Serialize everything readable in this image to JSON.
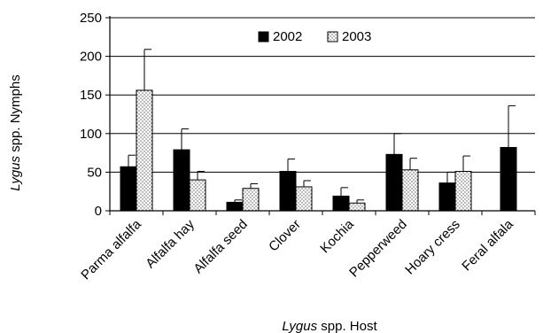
{
  "chart_data": {
    "type": "bar",
    "xlabel_italic": "Lygus",
    "xlabel_rest": " spp. Host",
    "ylabel_italic": "Lygus",
    "ylabel_rest": " spp. Nymphs",
    "ylim": [
      0,
      250
    ],
    "yticks": [
      0,
      50,
      100,
      150,
      200,
      250
    ],
    "grid": true,
    "legend_position": "top-center",
    "categories": [
      "Parma alfalfa",
      "Alfalfa hay",
      "Alfalfa seed",
      "Clover",
      "Kochia",
      "Pepperweed",
      "Hoary cress",
      "Feral alfala"
    ],
    "series": [
      {
        "name": "2002",
        "fill": "solid-black",
        "color": "#000000",
        "values": [
          57,
          79,
          11,
          51,
          19,
          73,
          36,
          82
        ],
        "error": [
          15,
          27,
          3,
          16,
          11,
          27,
          14,
          54
        ]
      },
      {
        "name": "2003",
        "fill": "dotted",
        "color": "#bfbfbf",
        "values": [
          156,
          40,
          null,
          31,
          10,
          53,
          51,
          null
        ],
        "values_extra": {
          "2": 29
        },
        "error": [
          53,
          11,
          6,
          8,
          4,
          15,
          20,
          null
        ]
      }
    ]
  }
}
